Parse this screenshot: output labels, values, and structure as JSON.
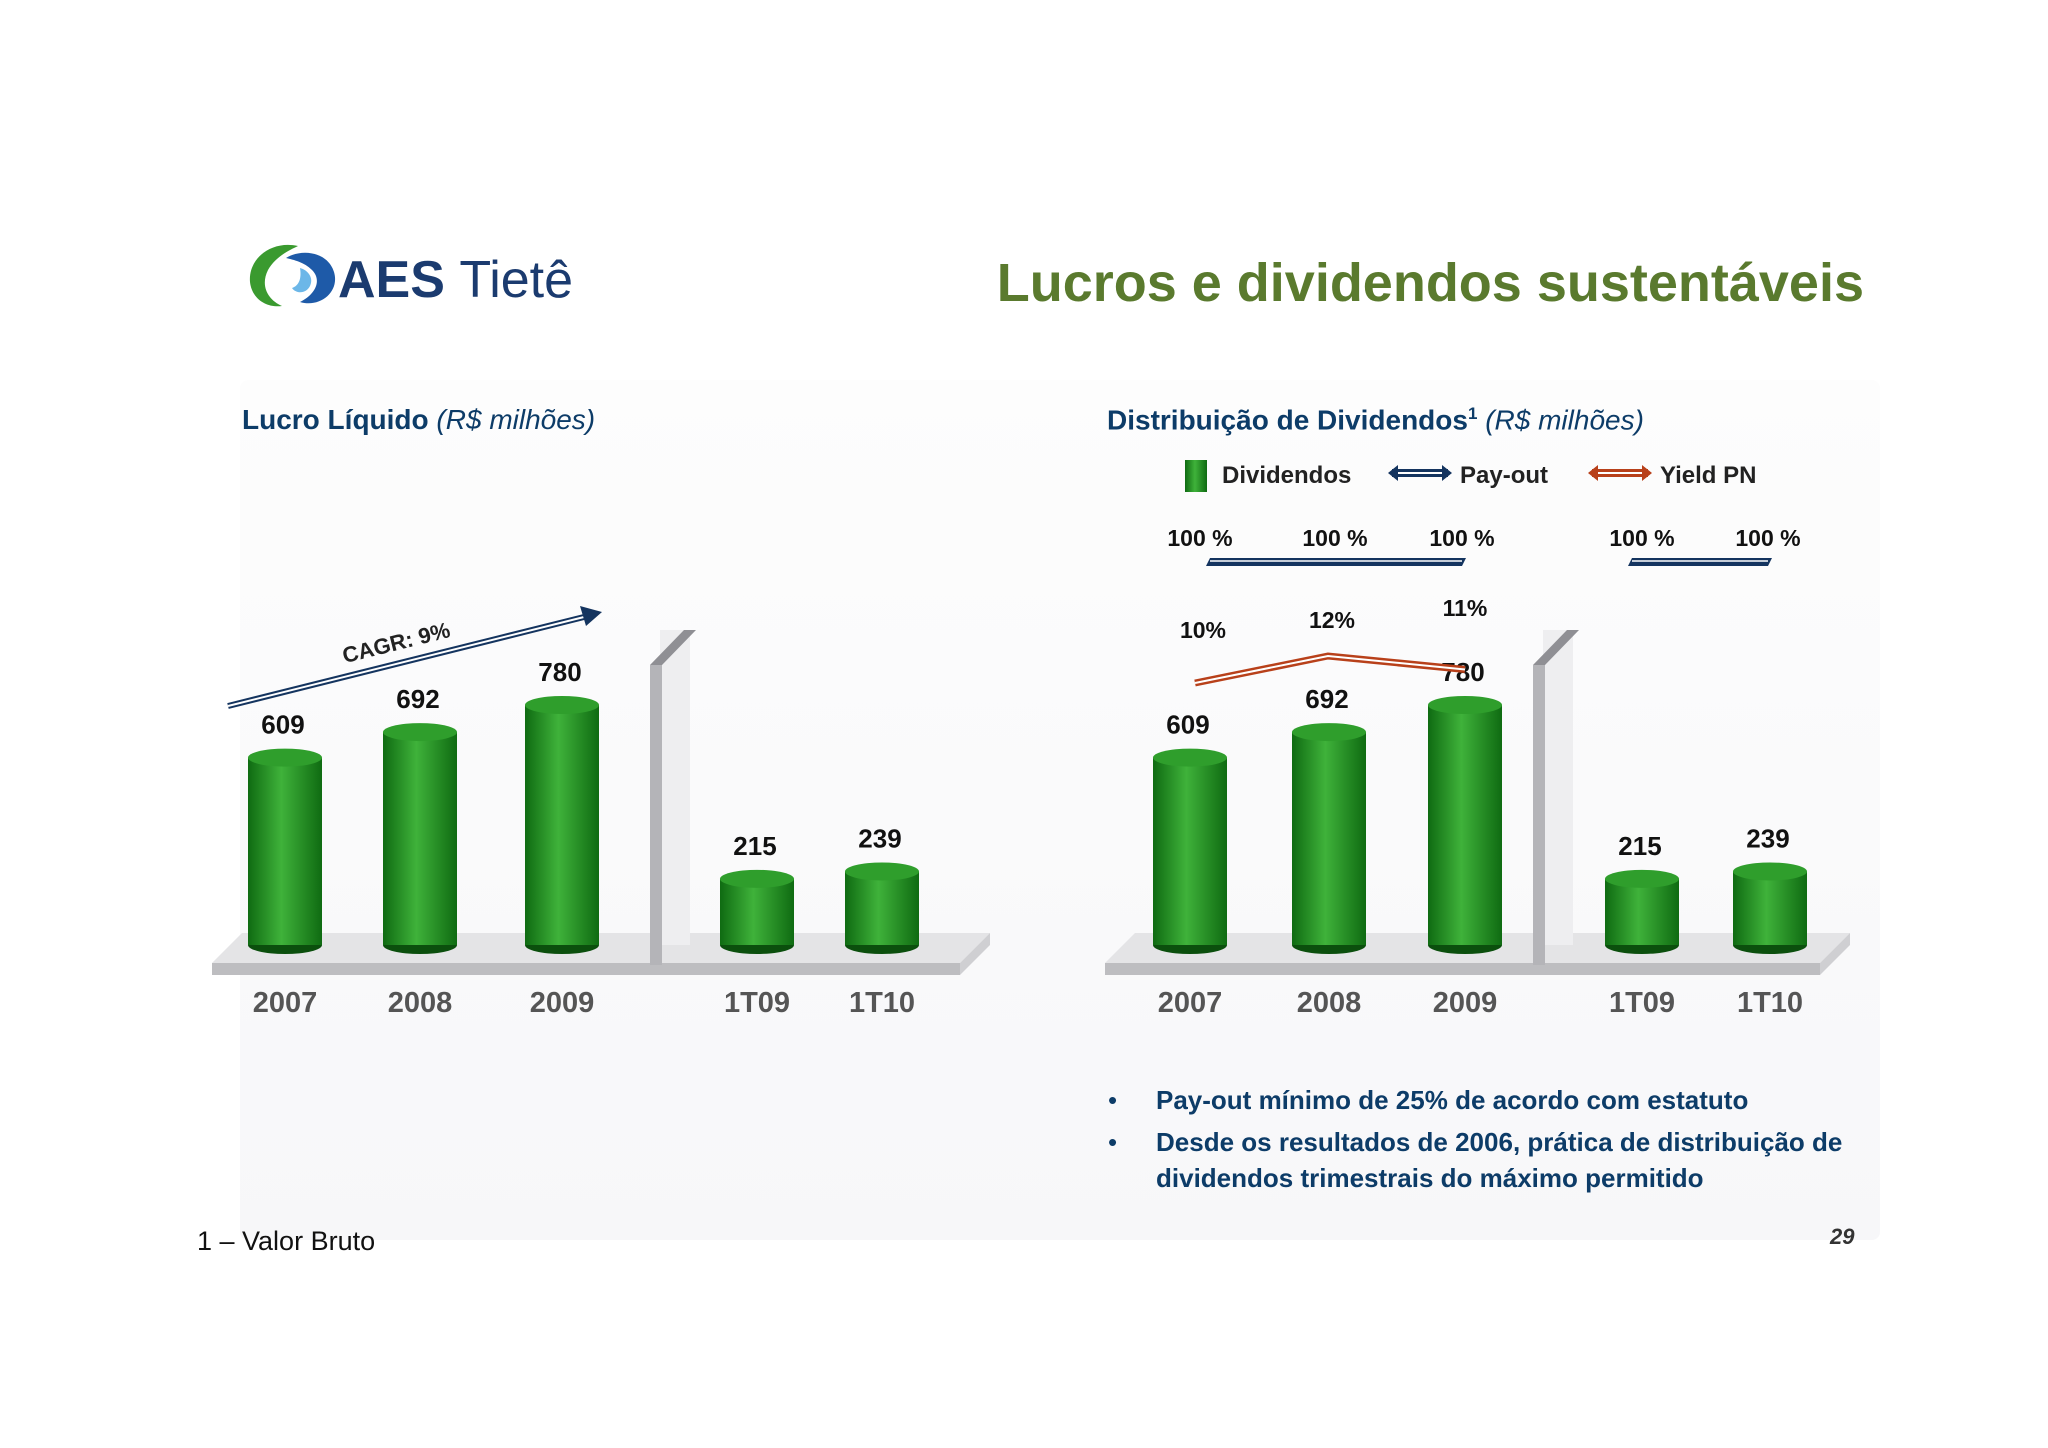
{
  "logo": {
    "brand": "AES",
    "name": "Tietê"
  },
  "title": "Lucros e dividendos sustentáveis",
  "left_section": {
    "title_bold": "Lucro Líquido",
    "title_italic": "(R$ milhões)"
  },
  "right_section": {
    "title_bold": "Distribuição de Dividendos",
    "superscript": "1",
    "title_italic": "(R$ milhões)"
  },
  "chart_data": [
    {
      "type": "bar",
      "title": "Lucro Líquido (R$ milhões)",
      "categories": [
        "2007",
        "2008",
        "2009",
        "1T09",
        "1T10"
      ],
      "values": [
        609,
        692,
        780,
        215,
        239
      ],
      "value_labels": [
        "609",
        "692",
        "780",
        "215",
        "239"
      ],
      "annotation": "CAGR: 9%",
      "bar_color": "#1f8a1f"
    },
    {
      "type": "bar",
      "title": "Distribuição de Dividendos1 (R$ milhões)",
      "categories": [
        "2007",
        "2008",
        "2009",
        "1T09",
        "1T10"
      ],
      "values": [
        609,
        692,
        780,
        215,
        239
      ],
      "value_labels": [
        "609",
        "692",
        "780",
        "215",
        "239"
      ],
      "legend": [
        {
          "name": "Dividendos",
          "color": "#1f8a1f"
        },
        {
          "name": "Pay-out",
          "color": "#14345f"
        },
        {
          "name": "Yield PN",
          "color": "#b8401a"
        }
      ],
      "payout_labels": [
        "100 %",
        "100 %",
        "100 %",
        "100 %",
        "100 %"
      ],
      "yield_series": {
        "name": "Yield PN",
        "categories": [
          "2007",
          "2008",
          "2009"
        ],
        "values": [
          10,
          12,
          11
        ],
        "labels": [
          "10%",
          "12%",
          "11%"
        ]
      }
    }
  ],
  "bullets": [
    "Pay-out mínimo de 25% de acordo com estatuto",
    "Desde os resultados de 2006, prática de distribuição de dividendos trimestrais do máximo permitido"
  ],
  "footnote": "1 – Valor Bruto",
  "page_number": "29"
}
